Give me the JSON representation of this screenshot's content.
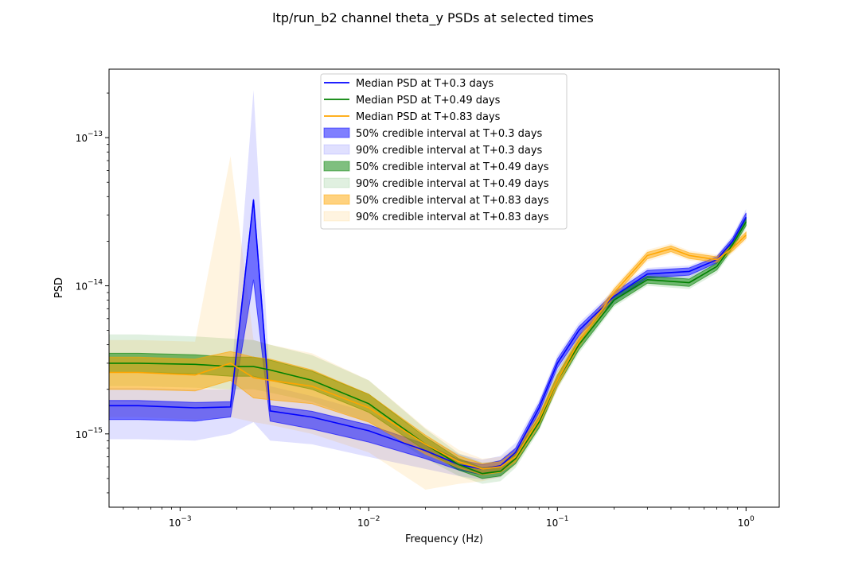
{
  "chart_data": {
    "type": "line",
    "title": "ltp/run_b2 channel theta_y PSDs at selected times",
    "xlabel": "Frequency (Hz)",
    "ylabel": "PSD",
    "xscale": "log",
    "yscale": "log",
    "xlim": [
      0.00042,
      1.5
    ],
    "ylim": [
      3.2e-16,
      2.9e-13
    ],
    "grid": false,
    "legend_position": "top-center",
    "x_ticks": [
      {
        "value": 0.001,
        "base": "10",
        "exp": "−3"
      },
      {
        "value": 0.01,
        "base": "10",
        "exp": "−2"
      },
      {
        "value": 0.1,
        "base": "10",
        "exp": "−1"
      },
      {
        "value": 1,
        "base": "10",
        "exp": "0"
      }
    ],
    "y_ticks": [
      {
        "value": 1e-15,
        "base": "10",
        "exp": "−15"
      },
      {
        "value": 1e-14,
        "base": "10",
        "exp": "−14"
      },
      {
        "value": 1e-13,
        "base": "10",
        "exp": "−13"
      }
    ],
    "series": [
      {
        "name": "T+0.3 days",
        "median_label": "Median PSD at T+0.3 days",
        "ci50_label": "50% credible interval at T+0.3 days",
        "ci90_label": "90% credible interval at T+0.3 days",
        "color": "#0000ff",
        "x": [
          0.00042,
          0.0006,
          0.0012,
          0.00185,
          0.00245,
          0.003,
          0.005,
          0.01,
          0.02,
          0.03,
          0.04,
          0.05,
          0.06,
          0.08,
          0.1,
          0.13,
          0.2,
          0.3,
          0.5,
          0.7,
          0.85,
          1.0
        ],
        "median": [
          1.55e-15,
          1.55e-15,
          1.5e-15,
          1.52e-15,
          3.8e-14,
          1.43e-15,
          1.3e-15,
          1.05e-15,
          7.7e-16,
          6.2e-16,
          5.8e-16,
          6.1e-16,
          7.5e-16,
          1.5e-15,
          3e-15,
          5e-15,
          8.5e-15,
          1.2e-14,
          1.25e-14,
          1.5e-14,
          2e-14,
          2.9e-14
        ],
        "ci50_low": [
          1.25e-15,
          1.25e-15,
          1.22e-15,
          1.3e-15,
          1.1e-14,
          1.22e-15,
          1.08e-15,
          8.8e-16,
          6.8e-16,
          5.7e-16,
          5.3e-16,
          5.6e-16,
          7e-16,
          1.4e-15,
          2.8e-15,
          4.6e-15,
          8e-15,
          1.13e-14,
          1.18e-14,
          1.43e-14,
          1.9e-14,
          2.7e-14
        ],
        "ci50_high": [
          1.68e-15,
          1.68e-15,
          1.63e-15,
          1.65e-15,
          3.85e-14,
          1.55e-15,
          1.42e-15,
          1.15e-15,
          8.5e-16,
          6.7e-16,
          6.2e-16,
          6.6e-16,
          8e-16,
          1.6e-15,
          3.2e-15,
          5.3e-15,
          9e-15,
          1.27e-14,
          1.32e-14,
          1.57e-14,
          2.1e-14,
          3.1e-14
        ],
        "ci90_low": [
          9.2e-16,
          9.2e-16,
          9e-16,
          1e-15,
          1.2e-15,
          9e-16,
          8.5e-16,
          7e-16,
          5.8e-16,
          5.2e-16,
          4.9e-16,
          5.1e-16,
          6.5e-16,
          1.3e-15,
          2.6e-15,
          4.3e-15,
          7.6e-15,
          1.08e-14,
          1.12e-14,
          1.38e-14,
          1.85e-14,
          2.6e-14
        ],
        "ci90_high": [
          2.05e-15,
          2.05e-15,
          2e-15,
          2e-15,
          2.1e-13,
          2.1e-15,
          1.8e-15,
          1.4e-15,
          9.5e-16,
          7.3e-16,
          6.7e-16,
          7.1e-16,
          8.7e-16,
          1.7e-15,
          3.4e-15,
          5.6e-15,
          9.4e-15,
          1.32e-14,
          1.37e-14,
          1.62e-14,
          2.2e-14,
          3.3e-14
        ]
      },
      {
        "name": "T+0.49 days",
        "median_label": "Median PSD at T+0.49 days",
        "ci50_label": "50% credible interval at T+0.49 days",
        "ci90_label": "90% credible interval at T+0.49 days",
        "color": "#008000",
        "x": [
          0.00042,
          0.0006,
          0.0012,
          0.00185,
          0.00245,
          0.003,
          0.005,
          0.01,
          0.02,
          0.03,
          0.04,
          0.05,
          0.06,
          0.08,
          0.1,
          0.13,
          0.2,
          0.3,
          0.5,
          0.7,
          0.85,
          1.0
        ],
        "median": [
          3e-15,
          3e-15,
          2.95e-15,
          2.85e-15,
          2.85e-15,
          2.7e-15,
          2.3e-15,
          1.6e-15,
          8.5e-16,
          6.2e-16,
          5.4e-16,
          5.6e-16,
          6.8e-16,
          1.2e-15,
          2.3e-15,
          4e-15,
          8e-15,
          1.1e-14,
          1.05e-14,
          1.35e-14,
          1.9e-14,
          2.7e-14
        ],
        "ci50_low": [
          2.6e-15,
          2.6e-15,
          2.55e-15,
          2.45e-15,
          2.45e-15,
          2.3e-15,
          2e-15,
          1.4e-15,
          7.7e-16,
          5.7e-16,
          5e-16,
          5.2e-16,
          6.3e-16,
          1.1e-15,
          2.1e-15,
          3.7e-15,
          7.5e-15,
          1.04e-14,
          9.9e-15,
          1.28e-14,
          1.8e-14,
          2.55e-14
        ],
        "ci50_high": [
          3.5e-15,
          3.5e-15,
          3.42e-15,
          3.3e-15,
          3.3e-15,
          3.15e-15,
          2.65e-15,
          1.85e-15,
          9.5e-16,
          6.8e-16,
          5.9e-16,
          6.1e-16,
          7.3e-16,
          1.3e-15,
          2.5e-15,
          4.3e-15,
          8.5e-15,
          1.16e-14,
          1.11e-14,
          1.42e-14,
          2e-14,
          2.85e-14
        ],
        "ci90_low": [
          2.1e-15,
          2.1e-15,
          2.05e-15,
          2e-15,
          2e-15,
          1.9e-15,
          1.65e-15,
          1.2e-15,
          6.8e-16,
          5.2e-16,
          4.6e-16,
          4.8e-16,
          5.9e-16,
          1.05e-15,
          2e-15,
          3.5e-15,
          7.2e-15,
          1e-14,
          9.5e-15,
          1.22e-14,
          1.72e-14,
          2.45e-14
        ],
        "ci90_high": [
          4.7e-15,
          4.7e-15,
          4.55e-15,
          4.4e-15,
          4.3e-15,
          4e-15,
          3.4e-15,
          2.3e-15,
          1.08e-15,
          7.4e-16,
          6.4e-16,
          6.6e-16,
          7.8e-16,
          1.4e-15,
          2.7e-15,
          4.6e-15,
          8.9e-15,
          1.21e-14,
          1.16e-14,
          1.48e-14,
          2.1e-14,
          3e-14
        ]
      },
      {
        "name": "T+0.83 days",
        "median_label": "Median PSD at T+0.83 days",
        "ci50_label": "50% credible interval at T+0.83 days",
        "ci90_label": "90% credible interval at T+0.83 days",
        "color": "#ffa500",
        "x": [
          0.00042,
          0.0006,
          0.0012,
          0.00185,
          0.00245,
          0.003,
          0.005,
          0.01,
          0.02,
          0.03,
          0.04,
          0.05,
          0.06,
          0.08,
          0.1,
          0.13,
          0.2,
          0.3,
          0.4,
          0.5,
          0.7,
          0.85,
          1.0
        ],
        "median": [
          2.6e-15,
          2.6e-15,
          2.5e-15,
          3e-15,
          2.4e-15,
          2.3e-15,
          2.1e-15,
          1.5e-15,
          8.5e-16,
          6.5e-16,
          5.8e-16,
          6e-16,
          7e-16,
          1.25e-15,
          2.3e-15,
          4.2e-15,
          9e-15,
          1.6e-14,
          1.78e-14,
          1.6e-14,
          1.5e-14,
          1.8e-14,
          2.2e-14
        ],
        "ci50_low": [
          2e-15,
          2e-15,
          1.95e-15,
          2.3e-15,
          1.75e-15,
          1.7e-15,
          1.6e-15,
          1.2e-15,
          7.3e-16,
          5.9e-16,
          5.3e-16,
          5.5e-16,
          6.5e-16,
          1.15e-15,
          2.1e-15,
          3.9e-15,
          8.5e-15,
          1.52e-14,
          1.7e-14,
          1.53e-14,
          1.44e-14,
          1.72e-14,
          2.1e-14
        ],
        "ci50_high": [
          3.3e-15,
          3.3e-15,
          3.2e-15,
          3.6e-15,
          3.3e-15,
          3.2e-15,
          2.7e-15,
          1.85e-15,
          9.8e-16,
          7.1e-16,
          6.3e-16,
          6.5e-16,
          7.6e-16,
          1.35e-15,
          2.5e-15,
          4.5e-15,
          9.5e-15,
          1.68e-14,
          1.86e-14,
          1.67e-14,
          1.57e-14,
          1.88e-14,
          2.3e-14
        ],
        "ci90_low": [
          1.3e-15,
          1.3e-15,
          1.25e-15,
          1.3e-15,
          1.2e-15,
          1.15e-15,
          1e-15,
          7.5e-16,
          4.2e-16,
          4.6e-16,
          4.8e-16,
          5.1e-16,
          6.1e-16,
          1.08e-15,
          2e-15,
          3.7e-15,
          8.1e-15,
          1.46e-14,
          1.64e-14,
          1.48e-14,
          1.4e-14,
          1.66e-14,
          2.02e-14
        ],
        "ci90_high": [
          4.3e-15,
          4.3e-15,
          4.2e-15,
          7.5e-14,
          4.3e-15,
          4e-15,
          3.5e-15,
          2.3e-15,
          1.1e-15,
          7.8e-16,
          6.8e-16,
          7e-16,
          8.1e-16,
          1.45e-15,
          2.65e-15,
          4.8e-15,
          9.9e-15,
          1.75e-14,
          1.93e-14,
          1.73e-14,
          1.62e-14,
          1.95e-14,
          2.4e-14
        ]
      }
    ]
  }
}
